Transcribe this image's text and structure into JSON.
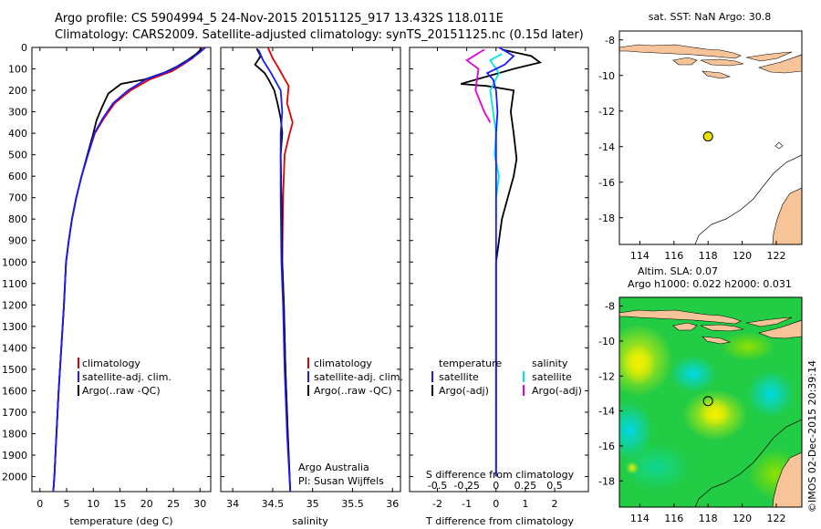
{
  "header": {
    "title_line1": "Argo profile: CS 5904994_5 24-Nov-2015 20151125_917 13.432S 118.011E",
    "title_line2": "Climatology: CARS2009. Satellite-adjusted climatology: synTS_20151125.nc (0.15d later)"
  },
  "colors": {
    "climatology": "#e00000",
    "satellite": "#1a1aff",
    "argo": "#000000",
    "cyan": "#00e5e5",
    "magenta": "#e000e0",
    "land": "#f7c499",
    "marker": "#e8e000"
  },
  "chart_data": [
    {
      "type": "line",
      "id": "temperature",
      "xlabel": "temperature (deg C)",
      "ylabel": "",
      "xlim": [
        -1.5,
        32
      ],
      "ylim": [
        2070,
        0
      ],
      "xticks": [
        0,
        5,
        10,
        15,
        20,
        25,
        30
      ],
      "yticks": [
        0,
        100,
        200,
        300,
        400,
        500,
        600,
        700,
        800,
        900,
        1000,
        1100,
        1200,
        1300,
        1400,
        1500,
        1600,
        1700,
        1800,
        1900,
        2000
      ],
      "legend": [
        "climatology",
        "satellite-adj. clim.",
        "Argo(..raw -QC)"
      ],
      "series": [
        {
          "name": "climatology",
          "color_key": "climatology",
          "points": [
            [
              30.4,
              0
            ],
            [
              29.8,
              20
            ],
            [
              28.6,
              50
            ],
            [
              26.8,
              80
            ],
            [
              24.8,
              110
            ],
            [
              20.5,
              150
            ],
            [
              17,
              200
            ],
            [
              14,
              260
            ],
            [
              12,
              330
            ],
            [
              10.3,
              400
            ],
            [
              9,
              500
            ],
            [
              7.8,
              600
            ],
            [
              6.8,
              700
            ],
            [
              6,
              800
            ],
            [
              5.4,
              900
            ],
            [
              4.9,
              1000
            ],
            [
              4.5,
              1200
            ],
            [
              4,
              1400
            ],
            [
              3.5,
              1600
            ],
            [
              3.1,
              1800
            ],
            [
              2.7,
              2000
            ],
            [
              2.5,
              2070
            ]
          ]
        },
        {
          "name": "satellite-adj. clim.",
          "color_key": "satellite",
          "points": [
            [
              31,
              0
            ],
            [
              30.1,
              20
            ],
            [
              28.5,
              50
            ],
            [
              26.5,
              80
            ],
            [
              24.2,
              110
            ],
            [
              19.8,
              150
            ],
            [
              16.5,
              200
            ],
            [
              13.7,
              260
            ],
            [
              11.8,
              330
            ],
            [
              10.2,
              400
            ],
            [
              9,
              500
            ],
            [
              7.8,
              600
            ],
            [
              6.8,
              700
            ],
            [
              6,
              800
            ],
            [
              5.4,
              900
            ],
            [
              4.9,
              1000
            ],
            [
              4.5,
              1200
            ],
            [
              4,
              1400
            ],
            [
              3.5,
              1600
            ],
            [
              3.1,
              1800
            ],
            [
              2.7,
              2000
            ],
            [
              2.5,
              2070
            ]
          ]
        },
        {
          "name": "Argo(..raw -QC)",
          "color_key": "argo",
          "points": [
            [
              30.3,
              5
            ],
            [
              29.3,
              30
            ],
            [
              27.6,
              60
            ],
            [
              25.6,
              90
            ],
            [
              23.5,
              115
            ],
            [
              19.5,
              150
            ],
            [
              15.2,
              170
            ],
            [
              12.8,
              215
            ],
            [
              11.5,
              285
            ],
            [
              10.6,
              340
            ],
            [
              9.8,
              420
            ],
            [
              8.9,
              500
            ],
            [
              7.8,
              600
            ],
            [
              6.8,
              700
            ],
            [
              6,
              800
            ],
            [
              5.4,
              900
            ],
            [
              4.9,
              1000
            ],
            [
              4.5,
              1200
            ],
            [
              4,
              1400
            ],
            [
              3.5,
              1600
            ],
            [
              3.1,
              1800
            ],
            [
              2.7,
              2000
            ],
            [
              2.5,
              2070
            ]
          ]
        }
      ]
    },
    {
      "type": "line",
      "id": "salinity",
      "xlabel": "salinity",
      "xlim": [
        33.85,
        36.1
      ],
      "ylim": [
        2070,
        0
      ],
      "xticks": [
        34,
        34.5,
        35,
        35.5,
        36
      ],
      "legend": [
        "climatology",
        "satellite-adj. clim.",
        "Argo(..raw -QC)"
      ],
      "annotation": [
        "Argo Australia",
        "PI: Susan Wijffels"
      ],
      "series": [
        {
          "name": "climatology",
          "color_key": "climatology",
          "points": [
            [
              34.44,
              0
            ],
            [
              34.5,
              50
            ],
            [
              34.58,
              100
            ],
            [
              34.7,
              180
            ],
            [
              34.68,
              260
            ],
            [
              34.75,
              350
            ],
            [
              34.7,
              420
            ],
            [
              34.65,
              500
            ],
            [
              34.63,
              700
            ],
            [
              34.62,
              1000
            ],
            [
              34.64,
              1200
            ],
            [
              34.66,
              1500
            ],
            [
              34.69,
              1800
            ],
            [
              34.72,
              2070
            ]
          ]
        },
        {
          "name": "satellite-adj. clim.",
          "color_key": "satellite",
          "points": [
            [
              34.32,
              10
            ],
            [
              34.38,
              60
            ],
            [
              34.48,
              120
            ],
            [
              34.6,
              200
            ],
            [
              34.62,
              300
            ],
            [
              34.6,
              400
            ],
            [
              34.6,
              500
            ],
            [
              34.6,
              700
            ],
            [
              34.61,
              1000
            ],
            [
              34.63,
              1200
            ],
            [
              34.65,
              1500
            ],
            [
              34.68,
              1800
            ],
            [
              34.72,
              2070
            ]
          ]
        },
        {
          "name": "Argo(..raw -QC)",
          "color_key": "argo",
          "points": [
            [
              34.3,
              5
            ],
            [
              34.35,
              40
            ],
            [
              34.28,
              80
            ],
            [
              34.4,
              120
            ],
            [
              34.45,
              150
            ],
            [
              34.52,
              200
            ],
            [
              34.56,
              260
            ],
            [
              34.6,
              330
            ],
            [
              34.62,
              400
            ],
            [
              34.6,
              500
            ],
            [
              34.61,
              700
            ],
            [
              34.62,
              1000
            ],
            [
              34.64,
              1200
            ],
            [
              34.66,
              1500
            ],
            [
              34.69,
              1800
            ],
            [
              34.72,
              2070
            ]
          ]
        }
      ]
    },
    {
      "type": "line",
      "id": "difference",
      "xlabel": "T difference from climatology",
      "xlabel2": "S difference from climatology",
      "xlim": [
        -2.95,
        3.15
      ],
      "ylim": [
        2070,
        0
      ],
      "xticks": [
        -2,
        -1,
        0,
        1,
        2
      ],
      "sticks": [
        "-0.5",
        "-0.25",
        "0",
        "0.25",
        "0.5"
      ],
      "sticks_pos": [
        -2,
        -1,
        0,
        1,
        2
      ],
      "legend_titles": [
        "temperature",
        "salinity"
      ],
      "legend": [
        "satellite",
        "Argo(-adj)",
        "satellite",
        "Argo(-adj)"
      ],
      "series": [
        {
          "name": "temperature satellite",
          "color_key": "satellite",
          "points": [
            [
              0.1,
              0
            ],
            [
              0.6,
              40
            ],
            [
              0.3,
              80
            ],
            [
              -0.3,
              120
            ],
            [
              -0.1,
              150
            ],
            [
              0,
              200
            ],
            [
              0.05,
              300
            ],
            [
              0,
              400
            ],
            [
              0,
              600
            ],
            [
              0,
              800
            ],
            [
              0,
              1000
            ],
            [
              0,
              1200
            ],
            [
              0,
              1500
            ],
            [
              0,
              2000
            ]
          ]
        },
        {
          "name": "temperature Argo(-adj)",
          "color_key": "argo",
          "points": [
            [
              0.2,
              10
            ],
            [
              1.2,
              40
            ],
            [
              1.5,
              70
            ],
            [
              0.6,
              100
            ],
            [
              -1.2,
              170
            ],
            [
              -0.3,
              180
            ],
            [
              0.6,
              200
            ],
            [
              0.5,
              300
            ],
            [
              0.6,
              400
            ],
            [
              0.7,
              520
            ],
            [
              0.6,
              600
            ],
            [
              0.4,
              700
            ],
            [
              0.2,
              800
            ],
            [
              0.1,
              900
            ],
            [
              0,
              1000
            ],
            [
              0,
              1200
            ],
            [
              0,
              1500
            ],
            [
              0,
              2000
            ]
          ]
        },
        {
          "name": "salinity satellite",
          "color_key": "cyan",
          "points": [
            [
              0.2,
              30
            ],
            [
              -0.2,
              60
            ],
            [
              0.1,
              120
            ],
            [
              -0.2,
              200
            ],
            [
              -0.1,
              300
            ],
            [
              0,
              400
            ],
            [
              -0.05,
              500
            ],
            [
              0.1,
              600
            ],
            [
              0,
              700
            ],
            [
              0,
              800
            ]
          ]
        },
        {
          "name": "salinity Argo(-adj)",
          "color_key": "magenta",
          "points": [
            [
              -0.4,
              10
            ],
            [
              -1.0,
              60
            ],
            [
              -0.6,
              100
            ],
            [
              -0.7,
              200
            ],
            [
              -0.4,
              300
            ],
            [
              -0.2,
              350
            ]
          ]
        }
      ]
    },
    {
      "type": "scatter",
      "id": "map-sst",
      "title": "sat. SST: NaN Argo: 30.8",
      "xlim": [
        112.8,
        123.5
      ],
      "ylim": [
        -19.5,
        -7.5
      ],
      "xticks": [
        114,
        116,
        118,
        120,
        122
      ],
      "yticks": [
        -8,
        -10,
        -12,
        -14,
        -16,
        -18
      ],
      "points": [
        [
          118.0,
          -13.43
        ]
      ]
    },
    {
      "type": "heatmap",
      "id": "map-sla",
      "title_line1": "Altim. SLA: 0.07",
      "title_line2": "Argo h1000: 0.022 h2000: 0.031",
      "xlim": [
        112.8,
        123.5
      ],
      "ylim": [
        -19.5,
        -7.5
      ],
      "xticks": [
        114,
        116,
        118,
        120,
        122
      ],
      "yticks": [
        -8,
        -10,
        -12,
        -14,
        -16,
        -18
      ],
      "points": [
        [
          118.0,
          -13.43
        ]
      ]
    }
  ],
  "side_label": "©IMOS 02-Dec-2015 20:39:14"
}
